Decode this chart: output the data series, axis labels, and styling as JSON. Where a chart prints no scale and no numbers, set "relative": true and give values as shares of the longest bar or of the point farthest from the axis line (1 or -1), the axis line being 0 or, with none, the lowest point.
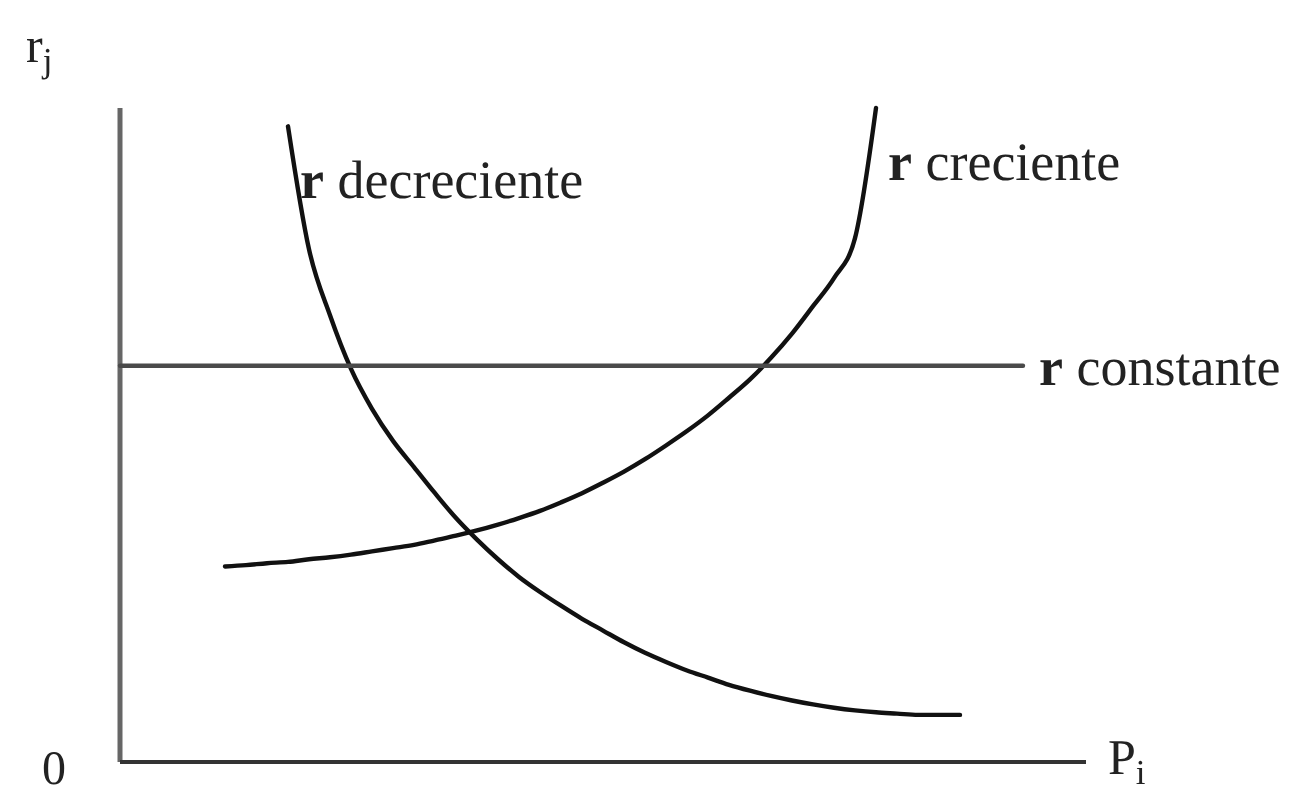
{
  "chart_data": {
    "type": "line",
    "relative": true,
    "xlabel": "P$_{i}$",
    "ylabel": "r$_{j}$",
    "annotations": [
      "0"
    ],
    "categories": [
      null,
      null,
      null,
      null,
      null,
      null,
      null,
      null,
      null,
      null,
      null,
      null,
      null,
      null,
      null,
      null,
      null,
      null,
      null,
      null,
      null,
      null,
      null,
      null,
      null,
      null,
      null,
      null,
      null,
      null,
      null,
      null,
      null,
      null,
      null,
      null,
      null,
      null,
      null,
      null,
      null,
      null,
      null,
      null,
      null,
      null,
      null
    ],
    "series": [
      {
        "name": "r decreciente",
        "color": "#111111",
        "values": [
          null,
          null,
          null,
          null,
          null,
          null,
          null,
          null,
          0.972,
          0.784,
          0.683,
          0.601,
          0.54,
          0.491,
          0.451,
          0.411,
          0.373,
          0.34,
          0.31,
          0.283,
          0.26,
          0.239,
          0.219,
          0.201,
          0.183,
          0.167,
          0.153,
          0.14,
          0.129,
          0.118,
          0.109,
          0.101,
          0.094,
          0.088,
          0.083,
          0.079,
          0.076,
          0.074,
          0.072,
          0.072,
          0.072,
          null,
          null,
          null,
          null,
          null,
          null
        ]
      },
      {
        "name": "r creciente",
        "color": "#111111",
        "values": [
          null,
          null,
          null,
          null,
          null,
          0.299,
          0.301,
          0.304,
          0.306,
          0.31,
          0.313,
          0.317,
          0.322,
          0.327,
          0.332,
          0.339,
          0.346,
          0.354,
          0.363,
          0.373,
          0.384,
          0.397,
          0.411,
          0.427,
          0.444,
          0.463,
          0.484,
          0.506,
          0.53,
          0.557,
          0.585,
          0.618,
          0.655,
          0.697,
          0.74,
          0.801,
          1.0,
          null,
          null,
          null,
          null,
          null,
          null,
          null,
          null,
          null,
          null
        ]
      },
      {
        "name": "r constante",
        "color": "#4a4a4a",
        "values": [
          0.606,
          0.606,
          0.606,
          0.606,
          0.606,
          0.606,
          0.606,
          0.606,
          0.606,
          0.606,
          0.606,
          0.606,
          0.606,
          0.606,
          0.606,
          0.606,
          0.606,
          0.606,
          0.606,
          0.606,
          0.606,
          0.606,
          0.606,
          0.606,
          0.606,
          0.606,
          0.606,
          0.606,
          0.606,
          0.606,
          0.606,
          0.606,
          0.606,
          0.606,
          0.606,
          0.606,
          0.606,
          0.606,
          0.606,
          0.606,
          0.606,
          0.606,
          0.606,
          0.606,
          null,
          null,
          null
        ]
      }
    ]
  }
}
